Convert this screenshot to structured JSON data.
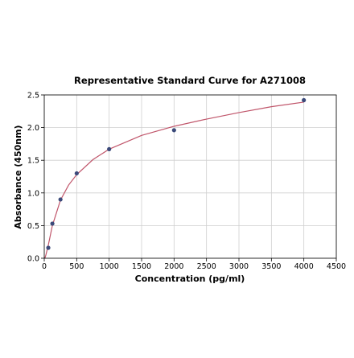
{
  "chart_data": {
    "type": "scatter",
    "title": "Representative Standard Curve for A271008",
    "xlabel": "Concentration (pg/ml)",
    "ylabel": "Absorbance (450nm)",
    "xlim": [
      0,
      4500
    ],
    "ylim": [
      0,
      2.5
    ],
    "xticks": [
      0,
      500,
      1000,
      1500,
      2000,
      2500,
      3000,
      3500,
      4000,
      4500
    ],
    "yticks": [
      0.0,
      0.5,
      1.0,
      1.5,
      2.0,
      2.5
    ],
    "xtick_labels": [
      "0",
      "500",
      "1000",
      "1500",
      "2000",
      "2500",
      "3000",
      "3500",
      "4000",
      "4500"
    ],
    "ytick_labels": [
      "0.0",
      "0.5",
      "1.0",
      "1.5",
      "2.0",
      "2.5"
    ],
    "grid": true,
    "series": [
      {
        "kind": "points",
        "x": [
          62.5,
          125,
          250,
          500,
          1000,
          2000,
          4000
        ],
        "y": [
          0.16,
          0.53,
          0.9,
          1.3,
          1.67,
          1.96,
          2.42
        ]
      },
      {
        "kind": "fitted-curve",
        "x": [
          10,
          25,
          62.5,
          125,
          250,
          375,
          500,
          750,
          1000,
          1500,
          2000,
          2500,
          3000,
          3500,
          4000
        ],
        "y": [
          0.0,
          0.05,
          0.2,
          0.5,
          0.89,
          1.12,
          1.28,
          1.51,
          1.67,
          1.88,
          2.02,
          2.13,
          2.23,
          2.32,
          2.39
        ]
      }
    ],
    "colors": {
      "points": "#3b4a7a",
      "curve": "#c0556a",
      "grid": "#cfcfcf"
    }
  }
}
